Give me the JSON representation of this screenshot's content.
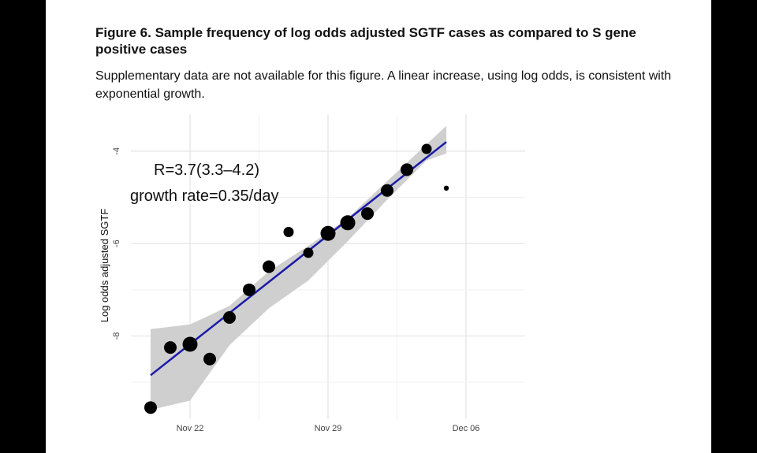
{
  "figure": {
    "title": "Figure 6. Sample frequency of log odds adjusted SGTF cases as compared to S gene positive cases",
    "note": "Supplementary data are not available for this figure. A linear increase, using log odds, is consistent with exponential growth."
  },
  "chart_data": {
    "type": "scatter",
    "title": "",
    "xlabel": "",
    "ylabel": "Log odds adjusted SGTF",
    "x_ticks": [
      {
        "date": "2020-11-22",
        "label": "Nov 22"
      },
      {
        "date": "2020-11-29",
        "label": "Nov 29"
      },
      {
        "date": "2020-12-06",
        "label": "Dec 06"
      }
    ],
    "y_ticks": [
      {
        "value": -4,
        "label": "-4"
      },
      {
        "value": -6,
        "label": "-6"
      },
      {
        "value": -8,
        "label": "-8"
      }
    ],
    "xlim": [
      "2020-11-19",
      "2020-12-09"
    ],
    "ylim": [
      -9.8,
      -3.2
    ],
    "grid": true,
    "legend": "none",
    "points": [
      {
        "date": "2020-11-20",
        "value": -9.55,
        "size": "medium"
      },
      {
        "date": "2020-11-21",
        "value": -8.25,
        "size": "medium"
      },
      {
        "date": "2020-11-22",
        "value": -8.18,
        "size": "large"
      },
      {
        "date": "2020-11-23",
        "value": -8.5,
        "size": "medium"
      },
      {
        "date": "2020-11-24",
        "value": -7.6,
        "size": "medium"
      },
      {
        "date": "2020-11-25",
        "value": -7.0,
        "size": "medium"
      },
      {
        "date": "2020-11-26",
        "value": -6.5,
        "size": "medium"
      },
      {
        "date": "2020-11-27",
        "value": -5.75,
        "size": "small"
      },
      {
        "date": "2020-11-28",
        "value": -6.2,
        "size": "small"
      },
      {
        "date": "2020-11-29",
        "value": -5.78,
        "size": "large"
      },
      {
        "date": "2020-11-30",
        "value": -5.55,
        "size": "large"
      },
      {
        "date": "2020-12-01",
        "value": -5.35,
        "size": "medium"
      },
      {
        "date": "2020-12-02",
        "value": -4.85,
        "size": "medium"
      },
      {
        "date": "2020-12-03",
        "value": -4.4,
        "size": "medium"
      },
      {
        "date": "2020-12-04",
        "value": -3.95,
        "size": "small"
      },
      {
        "date": "2020-12-05",
        "value": -4.8,
        "size": "tiny"
      }
    ],
    "fit_line": {
      "color": "#1a1aa8",
      "start": {
        "date": "2020-11-20",
        "value": -8.85
      },
      "end": {
        "date": "2020-12-05",
        "value": -3.8
      }
    },
    "confidence_band": {
      "color": "#cfcfcf",
      "upper": [
        {
          "date": "2020-11-20",
          "value": -7.85
        },
        {
          "date": "2020-11-22",
          "value": -7.75
        },
        {
          "date": "2020-11-24",
          "value": -7.35
        },
        {
          "date": "2020-11-26",
          "value": -6.6
        },
        {
          "date": "2020-11-28",
          "value": -6.05
        },
        {
          "date": "2020-11-30",
          "value": -5.45
        },
        {
          "date": "2020-12-02",
          "value": -4.65
        },
        {
          "date": "2020-12-04",
          "value": -3.85
        },
        {
          "date": "2020-12-05",
          "value": -3.45
        }
      ],
      "lower": [
        {
          "date": "2020-11-20",
          "value": -9.6
        },
        {
          "date": "2020-11-22",
          "value": -9.4
        },
        {
          "date": "2020-11-24",
          "value": -8.2
        },
        {
          "date": "2020-11-26",
          "value": -7.4
        },
        {
          "date": "2020-11-28",
          "value": -6.8
        },
        {
          "date": "2020-11-30",
          "value": -5.95
        },
        {
          "date": "2020-12-02",
          "value": -5.05
        },
        {
          "date": "2020-12-04",
          "value": -4.2
        },
        {
          "date": "2020-12-05",
          "value": -4.05
        }
      ]
    },
    "annotations": [
      "R=3.7(3.3–4.2)",
      "growth rate=0.35/day"
    ]
  }
}
